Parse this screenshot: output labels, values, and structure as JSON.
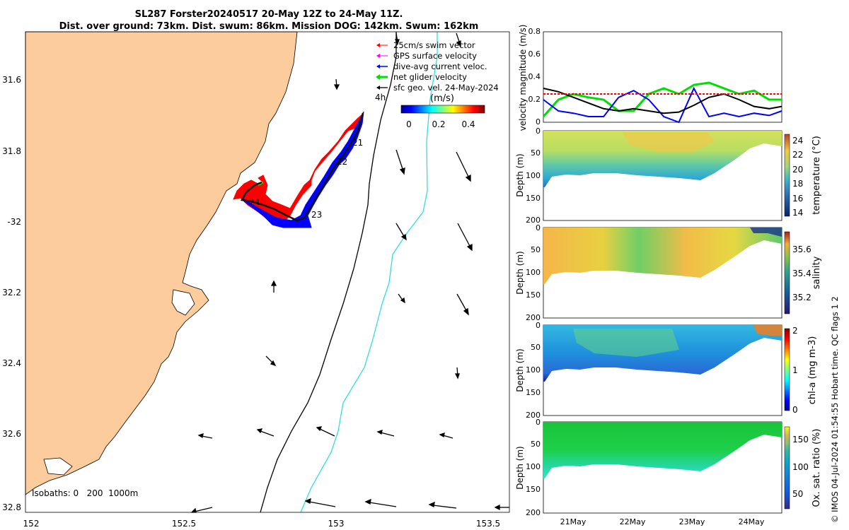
{
  "title": {
    "line1": "SL287 Forster20240517 20-May 12Z to 24-May 11Z.",
    "line2": "Dist. over ground: 73km. Dist. swum: 86km. Mission DOG: 142km. Swum: 162km"
  },
  "map": {
    "lon_ticks": [
      "152",
      "152.5",
      "153",
      "153.5"
    ],
    "lat_ticks": [
      "31.6",
      "31.8",
      "-32",
      "32.2",
      "32.4",
      "32.6",
      "32.8"
    ],
    "isobaths_label": "Isobaths: 0   200  1000m",
    "legend": [
      {
        "label": "25cm/s swim vector",
        "color": "#ff0000"
      },
      {
        "label": "GPS surface velocity",
        "color": "#ff00ff"
      },
      {
        "label": "dive-avg current veloc.",
        "color": "#0000ff"
      },
      {
        "label": "net glider velocity",
        "color": "#00dd00"
      },
      {
        "label": "sfc geo. vel. 24-May-2024",
        "color": "#000000"
      }
    ],
    "colorbar": {
      "label": "(m/s)",
      "ticks": [
        "0",
        "0.2",
        "0.4"
      ],
      "prefix": "4h"
    },
    "day_labels": [
      "21",
      "22",
      "23",
      "24"
    ],
    "colors": {
      "land": "#fccc9c",
      "track_red": "#ff0000",
      "track_blue": "#0000ff",
      "isobath_200": "#000000",
      "isobath_1000": "#33dddd"
    }
  },
  "velocity": {
    "ylabel": "velocity magnitude (m/s)",
    "y_ticks": [
      "0",
      "0.2",
      "0.4",
      "0.6",
      "0.8"
    ],
    "colors": {
      "swim": "#00dd00",
      "current": "#0000ff",
      "geo": "#000000",
      "ref": "#ff0000"
    }
  },
  "sections": [
    {
      "ylabel": "Depth (m)",
      "cb_label": "temperature (°C)",
      "cb_ticks": [
        "24",
        "22",
        "20",
        "18",
        "16",
        "14"
      ]
    },
    {
      "ylabel": "Depth (m)",
      "cb_label": "salinity",
      "cb_ticks": [
        "35.6",
        "35.4",
        "35.2"
      ]
    },
    {
      "ylabel": "Depth (m)",
      "cb_label": "chl-a (mg m-3)",
      "cb_ticks": [
        "2",
        "1",
        "0"
      ]
    },
    {
      "ylabel": "Depth (m)",
      "cb_label": "Ox. sat. ratio (%)",
      "cb_ticks": [
        "150",
        "100",
        "50"
      ]
    }
  ],
  "depth_ticks": [
    "0",
    "50",
    "100",
    "150",
    "200"
  ],
  "time_ticks": [
    "21May",
    "22May",
    "23May",
    "24May"
  ],
  "credit": "© IMOS 04-Jul-2024 01:54:55 Hobart time. QC flags 1  2",
  "chart_data": [
    {
      "type": "line",
      "panel": "glider velocity time series",
      "ylabel": "velocity magnitude (m/s)",
      "ylim": [
        0,
        0.8
      ],
      "xlim": [
        "20-May 12Z",
        "24-May 11Z"
      ],
      "x_days": [
        20.5,
        20.75,
        21.0,
        21.25,
        21.5,
        21.75,
        22.0,
        22.25,
        22.5,
        22.75,
        23.0,
        23.25,
        23.5,
        23.75,
        24.0,
        24.25,
        24.46
      ],
      "series": [
        {
          "name": "net glider velocity",
          "color": "#00dd00",
          "values": [
            0.05,
            0.2,
            0.25,
            0.22,
            0.2,
            0.1,
            0.1,
            0.25,
            0.3,
            0.25,
            0.33,
            0.35,
            0.3,
            0.25,
            0.28,
            0.2,
            0.2
          ]
        },
        {
          "name": "dive-avg current veloc.",
          "color": "#0000ff",
          "values": [
            0.2,
            0.1,
            0.08,
            0.05,
            0.05,
            0.22,
            0.28,
            0.2,
            0.05,
            0.0,
            0.3,
            0.05,
            0.08,
            0.05,
            0.08,
            0.06,
            0.1
          ]
        },
        {
          "name": "sfc geo. vel.",
          "color": "#000000",
          "values": [
            0.3,
            0.27,
            0.22,
            0.17,
            0.12,
            0.1,
            0.12,
            0.1,
            0.08,
            0.09,
            0.15,
            0.22,
            0.25,
            0.2,
            0.14,
            0.12,
            0.14
          ]
        },
        {
          "name": "25cm/s reference",
          "color": "#ff0000",
          "values": [
            0.25,
            0.25
          ]
        }
      ]
    },
    {
      "type": "heatmap",
      "variable": "temperature (°C)",
      "ylim": [
        200,
        0
      ],
      "clim": [
        13.5,
        25
      ],
      "bottom_depth_m": [
        130,
        100,
        100,
        105,
        100,
        95,
        100,
        100,
        105,
        100,
        95,
        90,
        100,
        85,
        50,
        20,
        15
      ]
    },
    {
      "type": "heatmap",
      "variable": "salinity",
      "ylim": [
        200,
        0
      ],
      "clim": [
        35.05,
        35.75
      ],
      "bottom_depth_m": [
        130,
        100,
        100,
        105,
        100,
        95,
        100,
        100,
        105,
        100,
        95,
        90,
        100,
        85,
        50,
        20,
        15
      ]
    },
    {
      "type": "heatmap",
      "variable": "chl-a (mg m-3)",
      "ylim": [
        200,
        0
      ],
      "clim": [
        0,
        2
      ],
      "bottom_depth_m": [
        130,
        100,
        100,
        105,
        100,
        95,
        100,
        100,
        105,
        100,
        95,
        90,
        100,
        85,
        50,
        20,
        15
      ]
    },
    {
      "type": "heatmap",
      "variable": "Ox. sat. ratio (%)",
      "ylim": [
        200,
        0
      ],
      "clim": [
        20,
        175
      ],
      "bottom_depth_m": [
        130,
        100,
        100,
        105,
        100,
        95,
        100,
        100,
        105,
        100,
        95,
        90,
        100,
        85,
        50,
        20,
        15
      ]
    }
  ]
}
